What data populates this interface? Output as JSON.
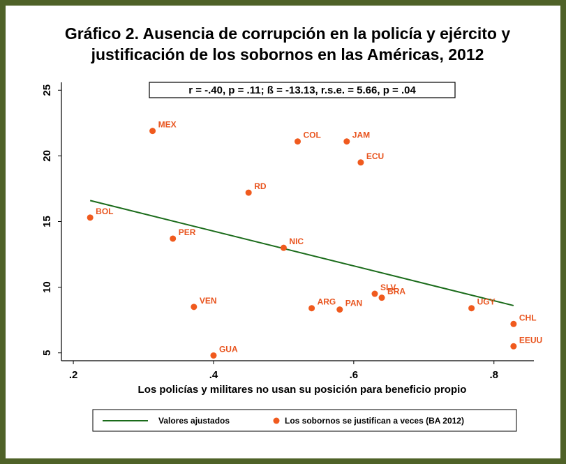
{
  "chart_data": {
    "type": "scatter",
    "title": [
      "Gráfico 2. Ausencia de corrupción en la policía y ejército y",
      "justificación de los sobornos en las Américas, 2012"
    ],
    "annotation": "r = -.40, p = .11; ß = -13.13, r.s.e. = 5.66, p = .04",
    "xlabel": "Los policías y militares no usan su posición para beneficio propio",
    "xlim": [
      0.183,
      0.857
    ],
    "ylim": [
      4.4,
      25.6
    ],
    "xticks": [
      {
        "value": 0.2,
        "label": ".2"
      },
      {
        "value": 0.4,
        "label": ".4"
      },
      {
        "value": 0.6,
        "label": ".6"
      },
      {
        "value": 0.8,
        "label": ".8"
      }
    ],
    "yticks": [
      5,
      10,
      15,
      20,
      25
    ],
    "grid": false,
    "legend": "bottom",
    "series": [
      {
        "name": "Valores ajustados",
        "type": "line",
        "color": "#1a6b1a",
        "x": [
          0.224,
          0.828
        ],
        "values": [
          16.6,
          8.6
        ]
      },
      {
        "name": "Los sobornos se justifican a veces (BA 2012)",
        "type": "scatter",
        "color": "#f05a1e",
        "labels": [
          "MEX",
          "COL",
          "JAM",
          "ECU",
          "RD",
          "BOL",
          "PER",
          "NIC",
          "SLV",
          "BRA",
          "VEN",
          "ARG",
          "PAN",
          "UGY",
          "CHL",
          "EEUU",
          "GUA"
        ],
        "x": [
          0.313,
          0.52,
          0.59,
          0.61,
          0.45,
          0.224,
          0.342,
          0.5,
          0.63,
          0.64,
          0.372,
          0.54,
          0.58,
          0.768,
          0.828,
          0.828,
          0.4
        ],
        "values": [
          21.9,
          21.1,
          21.1,
          19.5,
          17.2,
          15.3,
          13.7,
          13.0,
          9.5,
          9.2,
          8.5,
          8.4,
          8.3,
          8.4,
          7.2,
          5.5,
          4.8
        ]
      }
    ]
  }
}
